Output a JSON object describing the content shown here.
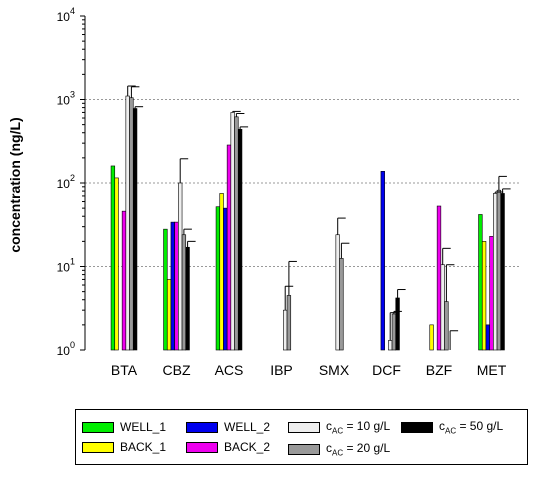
{
  "chart_data": {
    "type": "bar",
    "ylabel": "concentration (ng/L)",
    "yscale": "log",
    "ylim": [
      1,
      10000
    ],
    "grid": "horizontal dotted at decades",
    "y_ticks": [
      {
        "base": "10",
        "exp": "0"
      },
      {
        "base": "10",
        "exp": "1"
      },
      {
        "base": "10",
        "exp": "2"
      },
      {
        "base": "10",
        "exp": "3"
      },
      {
        "base": "10",
        "exp": "4"
      }
    ],
    "categories": [
      "BTA",
      "CBZ",
      "ACS",
      "IBP",
      "SMX",
      "DCF",
      "BZF",
      "MET"
    ],
    "legend_placement": "bottom",
    "series": [
      {
        "name": "WELL_1",
        "color": "#00ee00",
        "values": [
          160,
          28,
          52,
          null,
          null,
          null,
          null,
          42
        ],
        "err": [
          null,
          null,
          null,
          null,
          null,
          null,
          null,
          null
        ]
      },
      {
        "name": "BACK_1",
        "color": "#ffff00",
        "values": [
          115,
          7,
          75,
          null,
          null,
          null,
          2,
          20
        ],
        "err": [
          null,
          null,
          null,
          null,
          null,
          null,
          null,
          null
        ]
      },
      {
        "name": "WELL_2",
        "color": "#0000ee",
        "values": [
          null,
          34,
          50,
          null,
          null,
          138,
          null,
          2
        ],
        "err": [
          null,
          null,
          null,
          null,
          null,
          null,
          null,
          null
        ]
      },
      {
        "name": "BACK_2",
        "color": "#ee00ee",
        "values": [
          46,
          34,
          285,
          null,
          null,
          null,
          53,
          23
        ],
        "err": [
          null,
          null,
          null,
          null,
          null,
          null,
          null,
          null
        ]
      },
      {
        "name_prefix": "c",
        "name_sub": "AC",
        "name_suffix": " = 10 g/L",
        "color": "#eeeeee",
        "values": [
          1100,
          100,
          700,
          3,
          24,
          1.3,
          10.5,
          75
        ],
        "err": [
          1450,
          195,
          720,
          5.8,
          38,
          2.8,
          16.5,
          78
        ]
      },
      {
        "name_prefix": "c",
        "name_sub": "AC",
        "name_suffix": " = 20 g/L",
        "color": "#999999",
        "values": [
          1050,
          24,
          620,
          4.5,
          12.5,
          2.7,
          3.8,
          82
        ],
        "err": [
          1420,
          28,
          680,
          11.5,
          19,
          2.9,
          10.5,
          120
        ]
      },
      {
        "name_prefix": "c",
        "name_sub": "AC",
        "name_suffix": " = 50 g/L",
        "color": "#000000",
        "values": [
          780,
          17,
          440,
          null,
          null,
          4.2,
          1.0,
          75
        ],
        "err": [
          820,
          20,
          470,
          null,
          null,
          5.3,
          1.7,
          85
        ]
      }
    ]
  }
}
